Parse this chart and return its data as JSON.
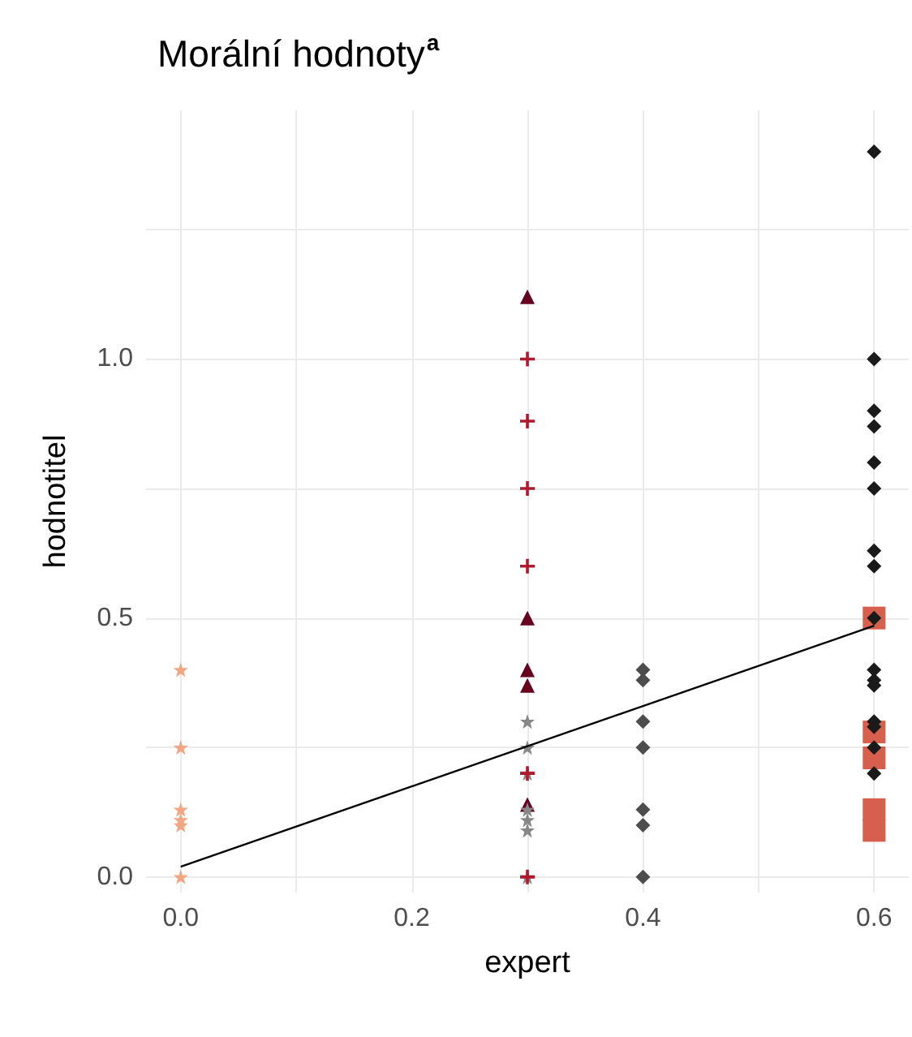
{
  "chart_data": {
    "type": "scatter",
    "title": "Morální hodnoty$^{a}$",
    "xlabel": "expert",
    "ylabel": "hodnotitel",
    "xlim": [
      -0.03,
      0.63
    ],
    "ylim": [
      -0.03,
      1.48
    ],
    "xticks": [
      {
        "value": 0,
        "label": "0.0"
      },
      {
        "value": 0.1,
        "label": null
      },
      {
        "value": 0.2,
        "label": "0.2"
      },
      {
        "value": 0.3,
        "label": null
      },
      {
        "value": 0.4,
        "label": "0.4"
      },
      {
        "value": 0.5,
        "label": null
      },
      {
        "value": 0.6,
        "label": "0.6"
      }
    ],
    "yticks": [
      {
        "value": 0,
        "label": "0.0"
      },
      {
        "value": 0.25,
        "label": null
      },
      {
        "value": 0.5,
        "label": "0.5"
      },
      {
        "value": 0.75,
        "label": null
      },
      {
        "value": 1,
        "label": "1.0"
      },
      {
        "value": 1.25,
        "label": null
      }
    ],
    "grid": true,
    "series": [
      {
        "color": "#f4a582",
        "marker": "star",
        "x": [
          0,
          0,
          0,
          0,
          0,
          0
        ],
        "values": [
          0.4,
          0.25,
          0.13,
          0.11,
          0.1,
          0
        ]
      },
      {
        "color": "#67001f",
        "marker": "triangle",
        "x": [
          0.3,
          0.3,
          0.3,
          0.3,
          0.3
        ],
        "values": [
          1.12,
          0.5,
          0.4,
          0.37,
          0.14
        ]
      },
      {
        "color": "#878787",
        "marker": "star",
        "x": [
          0.3,
          0.3,
          0.3,
          0.3,
          0.3,
          0.3,
          0.3
        ],
        "values": [
          0.3,
          0.25,
          0.2,
          0.13,
          0.11,
          0.09,
          0
        ]
      },
      {
        "color": "#b2182b",
        "marker": "cross",
        "x": [
          0.3,
          0.3,
          0.3,
          0.3,
          0.3,
          0.3
        ],
        "values": [
          1.0,
          0.88,
          0.75,
          0.6,
          0.2,
          0
        ]
      },
      {
        "color": "#4d4d4d",
        "marker": "diamond",
        "x": [
          0.4,
          0.4,
          0.4,
          0.4,
          0.4,
          0.4,
          0.4
        ],
        "values": [
          0.4,
          0.38,
          0.3,
          0.25,
          0.13,
          0.1,
          0
        ]
      },
      {
        "color": "#d6604d",
        "marker": "square",
        "x": [
          0.6,
          0.6,
          0.6,
          0.6,
          0.6
        ],
        "values": [
          0.5,
          0.28,
          0.23,
          0.13,
          0.09
        ]
      },
      {
        "color": "#1a1a1a",
        "marker": "diamond",
        "x": [
          0.6,
          0.6,
          0.6,
          0.6,
          0.6,
          0.6,
          0.6,
          0.6,
          0.6,
          0.6,
          0.6,
          0.6,
          0.6,
          0.6,
          0.6,
          0.6
        ],
        "values": [
          1.4,
          1.0,
          0.9,
          0.87,
          0.8,
          0.75,
          0.63,
          0.6,
          0.5,
          0.4,
          0.37,
          0.3,
          0.25,
          0.2,
          0.29,
          0.38
        ]
      },
      {
        "type": "line",
        "color": "#000000",
        "marker": "none",
        "line_style": "solid",
        "x": [
          0,
          0.6
        ],
        "values": [
          0.02,
          0.485
        ]
      }
    ]
  }
}
